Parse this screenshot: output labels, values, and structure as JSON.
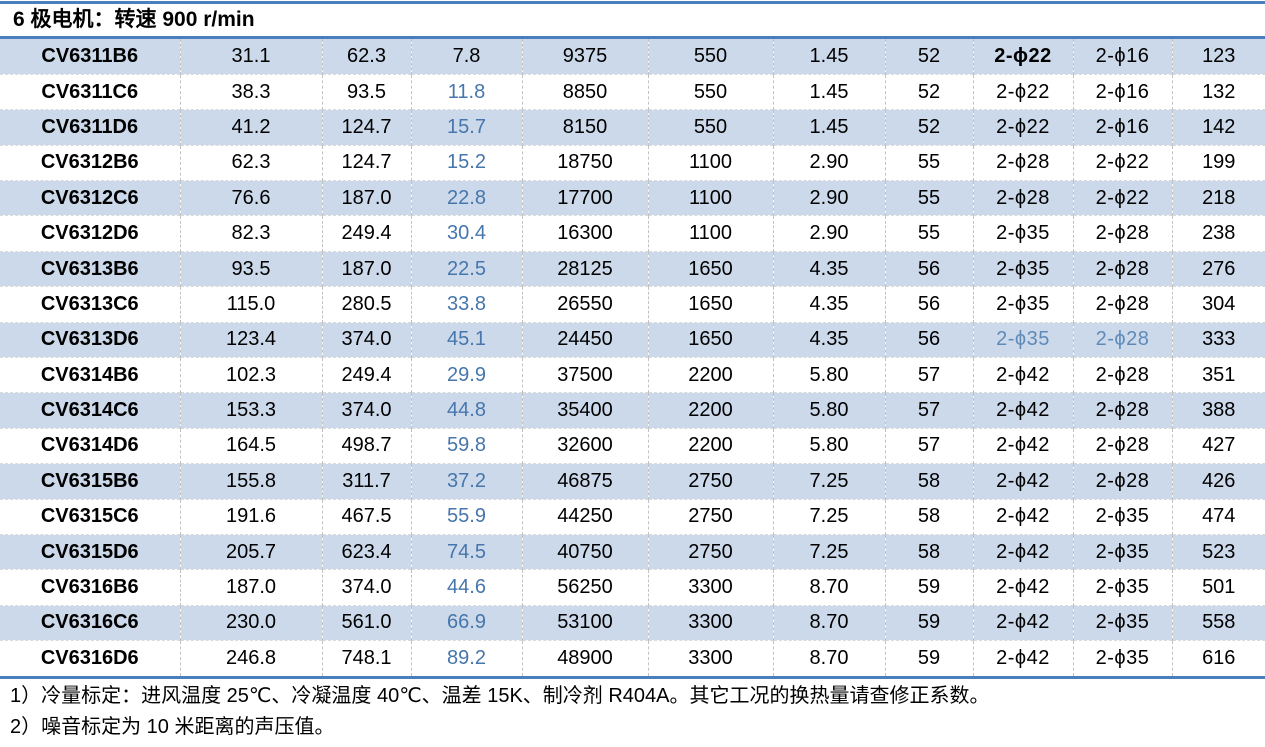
{
  "title": "6 极电机：转速 900 r/min",
  "table": {
    "rows": [
      [
        "CV6311B6",
        "31.1",
        "62.3",
        "7.8",
        "9375",
        "550",
        "1.45",
        "52",
        "2-ϕ22",
        "2-ϕ16",
        "123"
      ],
      [
        "CV6311C6",
        "38.3",
        "93.5",
        "11.8",
        "8850",
        "550",
        "1.45",
        "52",
        "2-ϕ22",
        "2-ϕ16",
        "132"
      ],
      [
        "CV6311D6",
        "41.2",
        "124.7",
        "15.7",
        "8150",
        "550",
        "1.45",
        "52",
        "2-ϕ22",
        "2-ϕ16",
        "142"
      ],
      [
        "CV6312B6",
        "62.3",
        "124.7",
        "15.2",
        "18750",
        "1100",
        "2.90",
        "55",
        "2-ϕ28",
        "2-ϕ22",
        "199"
      ],
      [
        "CV6312C6",
        "76.6",
        "187.0",
        "22.8",
        "17700",
        "1100",
        "2.90",
        "55",
        "2-ϕ28",
        "2-ϕ22",
        "218"
      ],
      [
        "CV6312D6",
        "82.3",
        "249.4",
        "30.4",
        "16300",
        "1100",
        "2.90",
        "55",
        "2-ϕ35",
        "2-ϕ28",
        "238"
      ],
      [
        "CV6313B6",
        "93.5",
        "187.0",
        "22.5",
        "28125",
        "1650",
        "4.35",
        "56",
        "2-ϕ35",
        "2-ϕ28",
        "276"
      ],
      [
        "CV6313C6",
        "115.0",
        "280.5",
        "33.8",
        "26550",
        "1650",
        "4.35",
        "56",
        "2-ϕ35",
        "2-ϕ28",
        "304"
      ],
      [
        "CV6313D6",
        "123.4",
        "374.0",
        "45.1",
        "24450",
        "1650",
        "4.35",
        "56",
        "2-ϕ35",
        "2-ϕ28",
        "333"
      ],
      [
        "CV6314B6",
        "102.3",
        "249.4",
        "29.9",
        "37500",
        "2200",
        "5.80",
        "57",
        "2-ϕ42",
        "2-ϕ28",
        "351"
      ],
      [
        "CV6314C6",
        "153.3",
        "374.0",
        "44.8",
        "35400",
        "2200",
        "5.80",
        "57",
        "2-ϕ42",
        "2-ϕ28",
        "388"
      ],
      [
        "CV6314D6",
        "164.5",
        "498.7",
        "59.8",
        "32600",
        "2200",
        "5.80",
        "57",
        "2-ϕ42",
        "2-ϕ28",
        "427"
      ],
      [
        "CV6315B6",
        "155.8",
        "311.7",
        "37.2",
        "46875",
        "2750",
        "7.25",
        "58",
        "2-ϕ42",
        "2-ϕ28",
        "426"
      ],
      [
        "CV6315C6",
        "191.6",
        "467.5",
        "55.9",
        "44250",
        "2750",
        "7.25",
        "58",
        "2-ϕ42",
        "2-ϕ35",
        "474"
      ],
      [
        "CV6315D6",
        "205.7",
        "623.4",
        "74.5",
        "40750",
        "2750",
        "7.25",
        "58",
        "2-ϕ42",
        "2-ϕ35",
        "523"
      ],
      [
        "CV6316B6",
        "187.0",
        "374.0",
        "44.6",
        "56250",
        "3300",
        "8.70",
        "59",
        "2-ϕ42",
        "2-ϕ35",
        "501"
      ],
      [
        "CV6316C6",
        "230.0",
        "561.0",
        "66.9",
        "53100",
        "3300",
        "8.70",
        "59",
        "2-ϕ42",
        "2-ϕ35",
        "558"
      ],
      [
        "CV6316D6",
        "246.8",
        "748.1",
        "89.2",
        "48900",
        "3300",
        "8.70",
        "59",
        "2-ϕ42",
        "2-ϕ35",
        "616"
      ]
    ],
    "blue_value_column": 3,
    "black_value_cells": [
      [
        0,
        3
      ]
    ],
    "phi_columns": [
      8,
      9
    ],
    "bold_cells": [
      [
        0,
        8
      ]
    ],
    "light_blue_cells": [
      [
        8,
        8
      ],
      [
        8,
        9
      ]
    ],
    "top_aligned_cells": [
      [
        0,
        4
      ],
      [
        0,
        5
      ],
      [
        0,
        6
      ],
      [
        1,
        4
      ],
      [
        2,
        4
      ]
    ]
  },
  "notes": [
    "1）冷量标定：进风温度 25℃、冷凝温度 40℃、温差 15K、制冷剂 R404A。其它工况的换热量请查修正系数。",
    "2）噪音标定为 10 米距离的声压值。"
  ],
  "colors": {
    "accent_rule": "#4a7ebc",
    "band_blue": "#ccd9ea",
    "value_blue_text": "#4676ac",
    "phi_light_blue_text": "#5f8ab8"
  }
}
